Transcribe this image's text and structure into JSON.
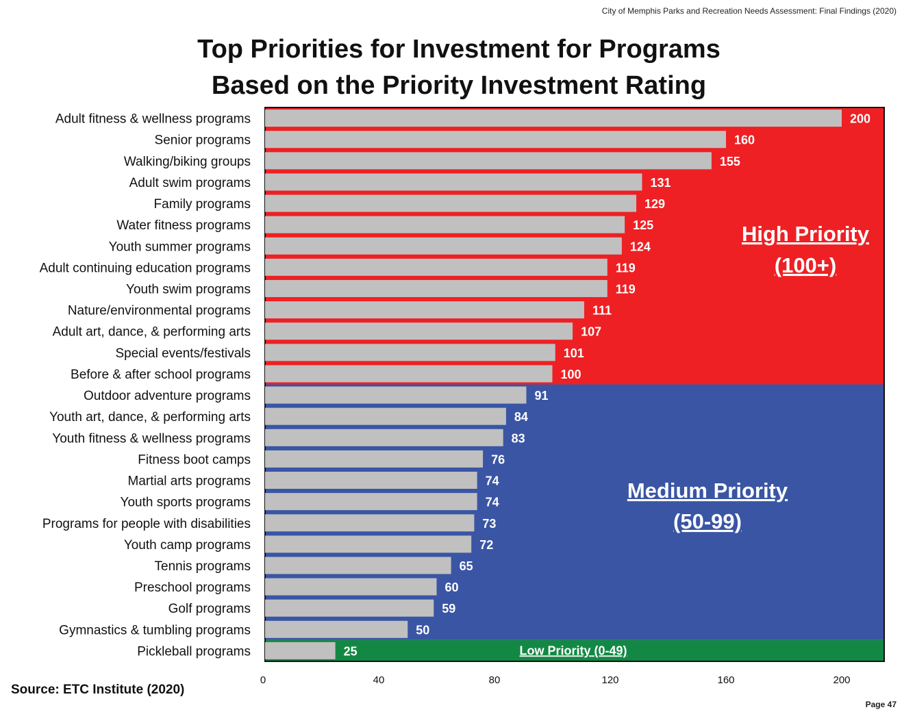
{
  "header": "City of Memphis Parks and Recreation Needs Assessment: Final Findings (2020)",
  "page_number": "Page 47",
  "source": "Source:  ETC Institute (2020)",
  "colors": {
    "high_zone": "#ee2024",
    "medium_zone": "#3a55a4",
    "low_zone": "#138844",
    "bar": "#c0c0c0",
    "zone_label": "#ffffff"
  },
  "chart_data": {
    "type": "bar",
    "orientation": "horizontal",
    "title": [
      "Top Priorities for Investment for Programs",
      "Based on the Priority Investment Rating"
    ],
    "categories": [
      "Adult fitness & wellness programs",
      "Senior programs",
      "Walking/biking groups",
      "Adult swim programs",
      "Family programs",
      "Water fitness programs",
      "Youth summer programs",
      "Adult continuing education programs",
      "Youth swim programs",
      "Nature/environmental programs",
      "Adult art, dance, & performing arts",
      "Special events/festivals",
      "Before & after school programs",
      "Outdoor adventure programs",
      "Youth art, dance, & performing arts",
      "Youth fitness & wellness programs",
      "Fitness boot camps",
      "Martial arts programs",
      "Youth sports programs",
      "Programs for people with disabilities",
      "Youth camp programs",
      "Tennis programs",
      "Preschool programs",
      "Golf programs",
      "Gymnastics & tumbling programs",
      "Pickleball programs"
    ],
    "values": [
      200,
      160,
      155,
      131,
      129,
      125,
      124,
      119,
      119,
      111,
      107,
      101,
      100,
      91,
      84,
      83,
      76,
      74,
      74,
      73,
      72,
      65,
      60,
      59,
      50,
      25
    ],
    "x_ticks": [
      0,
      40,
      80,
      120,
      160,
      200
    ],
    "xlim": [
      0,
      215
    ],
    "xlabel": "",
    "ylabel": "",
    "grid": false,
    "zones": [
      {
        "name": "High Priority",
        "range": "(100+)",
        "min": 100,
        "color": "#ee2024",
        "first_index": 0,
        "last_index": 12
      },
      {
        "name": "Medium Priority",
        "range": "(50-99)",
        "min": 50,
        "max": 99,
        "color": "#3a55a4",
        "first_index": 13,
        "last_index": 24
      },
      {
        "name": "Low Priority (0-49)",
        "range": "",
        "min": 0,
        "max": 49,
        "color": "#138844",
        "first_index": 25,
        "last_index": 25
      }
    ]
  }
}
